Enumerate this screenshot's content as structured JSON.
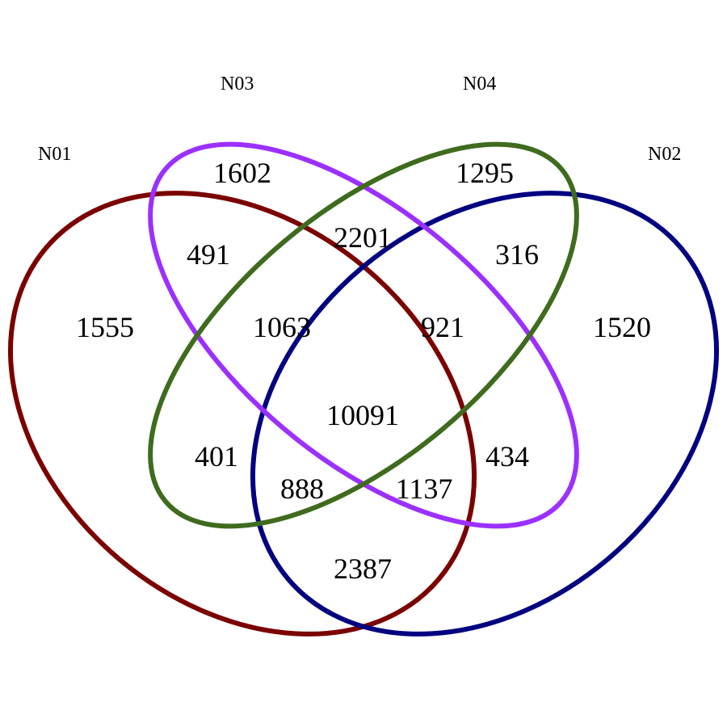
{
  "sets": [
    {
      "id": "N01",
      "name": "N01",
      "color": "#7b0000"
    },
    {
      "id": "N02",
      "name": "N02",
      "color": "#000080"
    },
    {
      "id": "N03",
      "name": "N03",
      "color": "#9b30ff"
    },
    {
      "id": "N04",
      "name": "N04",
      "color": "#3f6b1e"
    }
  ],
  "regions": [
    {
      "sets": [
        "N01"
      ],
      "count": "1555"
    },
    {
      "sets": [
        "N02"
      ],
      "count": "1520"
    },
    {
      "sets": [
        "N03"
      ],
      "count": "1602"
    },
    {
      "sets": [
        "N04"
      ],
      "count": "1295"
    },
    {
      "sets": [
        "N01",
        "N03"
      ],
      "count": "491"
    },
    {
      "sets": [
        "N03",
        "N04"
      ],
      "count": "2201"
    },
    {
      "sets": [
        "N02",
        "N04"
      ],
      "count": "316"
    },
    {
      "sets": [
        "N01",
        "N03",
        "N04"
      ],
      "count": "1063"
    },
    {
      "sets": [
        "N02",
        "N03",
        "N04"
      ],
      "count": "921"
    },
    {
      "sets": [
        "N01",
        "N04"
      ],
      "count": "401"
    },
    {
      "sets": [
        "N01",
        "N02",
        "N03",
        "N04"
      ],
      "count": "10091"
    },
    {
      "sets": [
        "N02",
        "N03"
      ],
      "count": "434"
    },
    {
      "sets": [
        "N01",
        "N02",
        "N04"
      ],
      "count": "888"
    },
    {
      "sets": [
        "N01",
        "N02",
        "N03"
      ],
      "count": "1137"
    },
    {
      "sets": [
        "N01",
        "N02"
      ],
      "count": "2387"
    }
  ]
}
